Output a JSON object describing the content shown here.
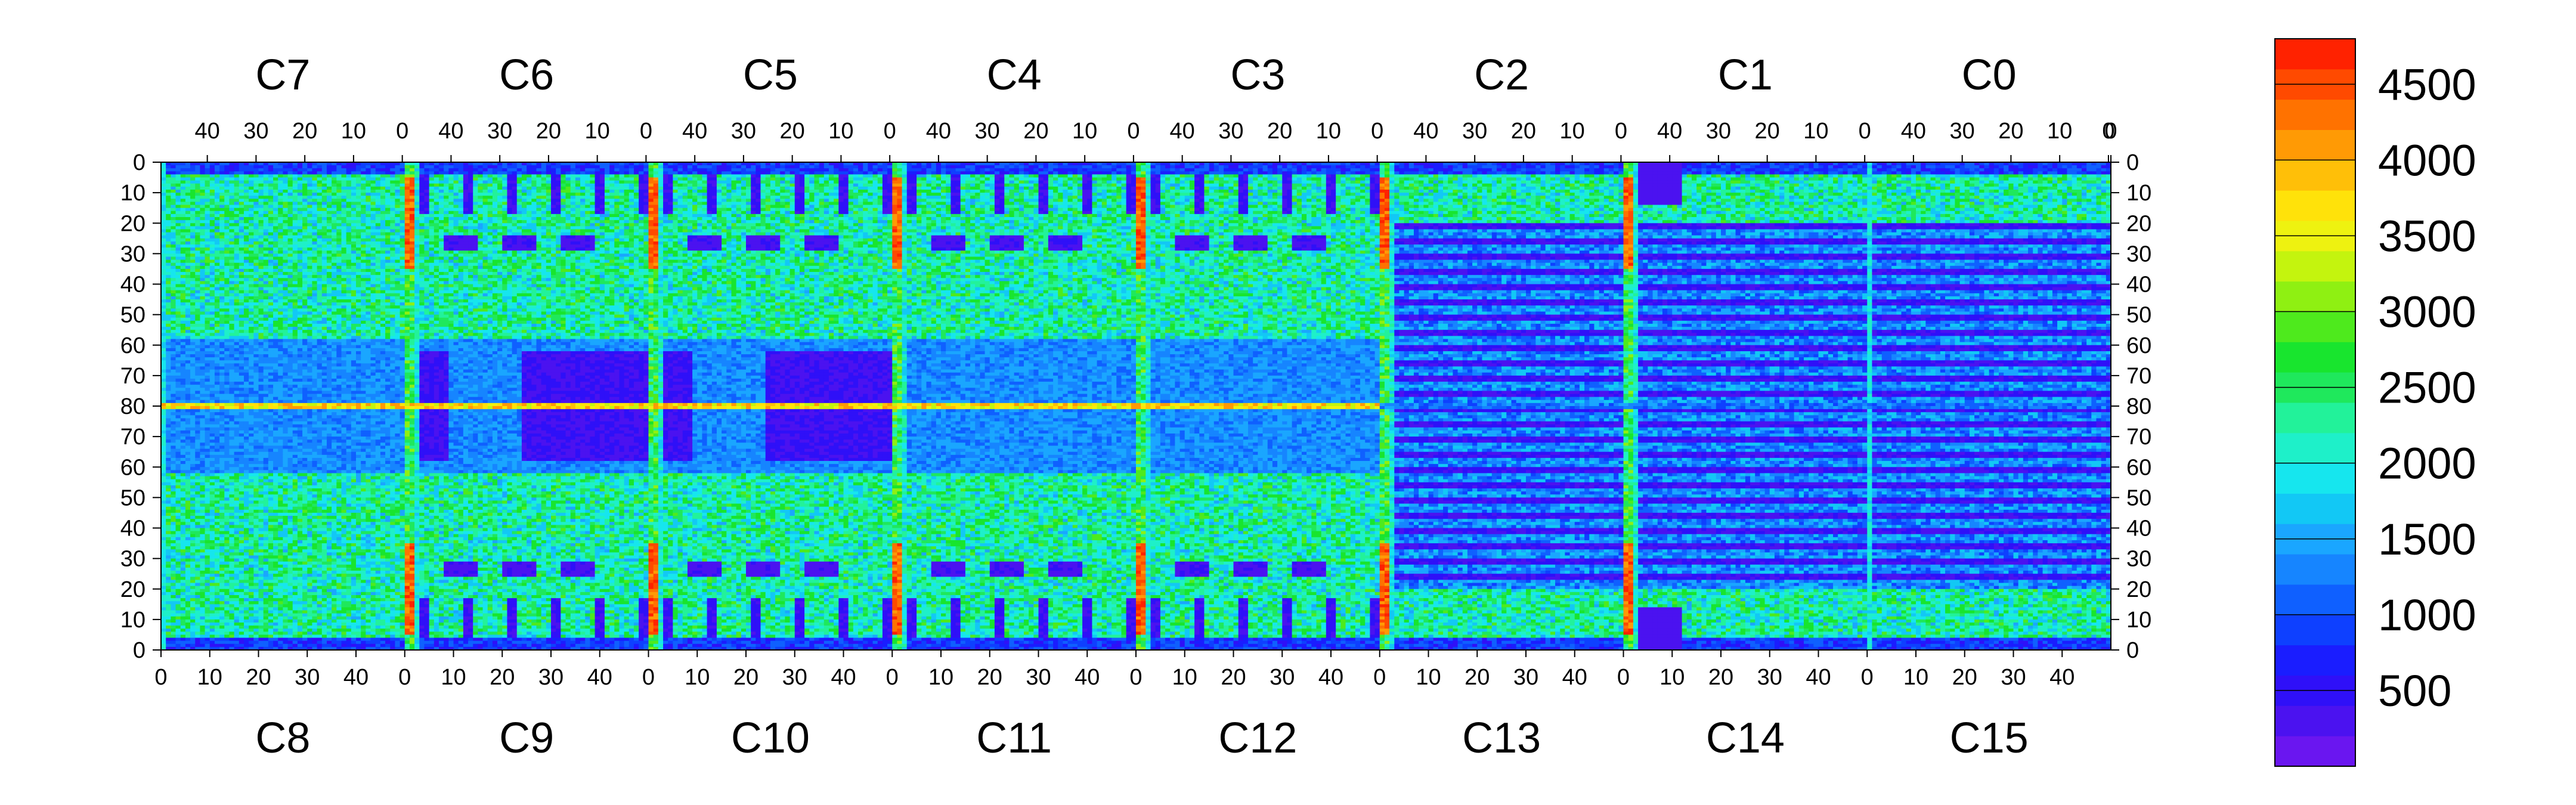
{
  "chart_data": {
    "type": "heatmap",
    "title": "",
    "top_chip_labels": [
      "C7",
      "C6",
      "C5",
      "C4",
      "C3",
      "C2",
      "C1",
      "C0"
    ],
    "bottom_chip_labels": [
      "C8",
      "C9",
      "C10",
      "C11",
      "C12",
      "C13",
      "C14",
      "C15"
    ],
    "top_x_ticks": [
      "40",
      "30",
      "20",
      "10",
      "0"
    ],
    "top_x_ticks_last": [
      "40",
      "30",
      "20",
      "10",
      "0",
      "0"
    ],
    "bottom_x_ticks": [
      "0",
      "10",
      "20",
      "30",
      "40"
    ],
    "y_ticks": [
      "0",
      "10",
      "20",
      "30",
      "40",
      "50",
      "60",
      "70",
      "80",
      "70",
      "60",
      "50",
      "40",
      "30",
      "20",
      "10",
      "0"
    ],
    "colorbar": {
      "min": 0,
      "max": 4800,
      "tick_labels": [
        "500",
        "1000",
        "1500",
        "2000",
        "2500",
        "3000",
        "3500",
        "4000",
        "4500"
      ],
      "tick_values": [
        500,
        1000,
        1500,
        2000,
        2500,
        3000,
        3500,
        4000,
        4500
      ],
      "colors": [
        "#6a16f0",
        "#4b12f0",
        "#2f10f8",
        "#1a1dff",
        "#0e40ff",
        "#0f60ff",
        "#1685ff",
        "#1aa6ff",
        "#12c8f5",
        "#16e6ee",
        "#1ef0c9",
        "#22f29a",
        "#1fe85c",
        "#18e52e",
        "#4eea1d",
        "#8ff012",
        "#c4f40e",
        "#eef210",
        "#ffe20a",
        "#ffbf08",
        "#ff9a05",
        "#ff7200",
        "#ff4a00",
        "#ff2200"
      ]
    },
    "description_values": {
      "cols_per_chip": 50,
      "rows_per_half": 80,
      "background_level": 2200,
      "hot_column_level": 4700,
      "low_level": 200
    }
  }
}
